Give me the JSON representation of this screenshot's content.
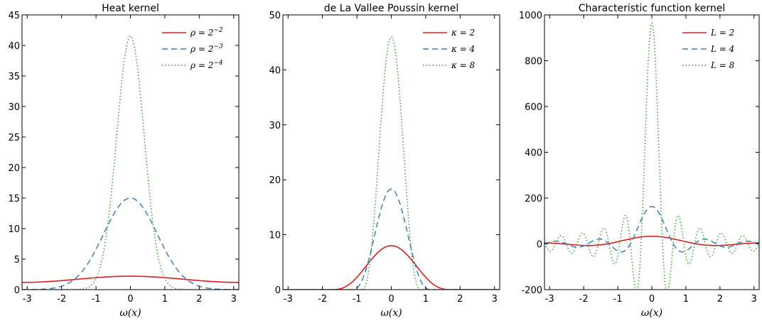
{
  "chart_data": [
    {
      "type": "line",
      "title": "Heat kernel",
      "xlabel": "ω(x)",
      "ylabel": "",
      "xlim": [
        -3.15,
        3.15
      ],
      "ylim": [
        0,
        45
      ],
      "xticks": [
        -3,
        -2,
        -1,
        0,
        1,
        2,
        3
      ],
      "yticks": [
        0,
        5,
        10,
        15,
        20,
        25,
        30,
        35,
        40,
        45
      ],
      "legend": "top-right",
      "series": [
        {
          "name": "ρ = 2^−2",
          "legend_base": "ρ = 2",
          "legend_exp": "−2",
          "color": "#e31a1c",
          "dash": "solid",
          "kernel": "heat",
          "param": 0.25
        },
        {
          "name": "ρ = 2^−3",
          "legend_base": "ρ = 2",
          "legend_exp": "−3",
          "color": "#3b7fb7",
          "dash": "dashed",
          "kernel": "heat",
          "param": 0.125
        },
        {
          "name": "ρ = 2^−4",
          "legend_base": "ρ = 2",
          "legend_exp": "−4",
          "color": "#33a02c",
          "dash": "dotted",
          "kernel": "heat",
          "param": 0.0625
        }
      ]
    },
    {
      "type": "line",
      "title": "de La Vallee Poussin kernel",
      "xlabel": "ω(x)",
      "ylabel": "",
      "xlim": [
        -3.15,
        3.15
      ],
      "ylim": [
        0,
        50
      ],
      "xticks": [
        -3,
        -2,
        -1,
        0,
        1,
        2,
        3
      ],
      "yticks": [
        0,
        10,
        20,
        30,
        40,
        50
      ],
      "legend": "top-right",
      "series": [
        {
          "name": "κ = 2",
          "legend_base": "κ = 2",
          "legend_exp": "",
          "color": "#e31a1c",
          "dash": "solid",
          "kernel": "vallee",
          "param": 2
        },
        {
          "name": "κ = 4",
          "legend_base": "κ = 4",
          "legend_exp": "",
          "color": "#3b7fb7",
          "dash": "dashed",
          "kernel": "vallee",
          "param": 4
        },
        {
          "name": "κ = 8",
          "legend_base": "κ = 8",
          "legend_exp": "",
          "color": "#33a02c",
          "dash": "dotted",
          "kernel": "vallee",
          "param": 8
        }
      ]
    },
    {
      "type": "line",
      "title": "Characteristic function kernel",
      "xlabel": "ω(x)",
      "ylabel": "",
      "xlim": [
        -3.15,
        3.15
      ],
      "ylim": [
        -200,
        1000
      ],
      "xticks": [
        -3,
        -2,
        -1,
        0,
        1,
        2,
        3
      ],
      "yticks": [
        -200,
        0,
        200,
        400,
        600,
        800,
        1000
      ],
      "legend": "top-right",
      "series": [
        {
          "name": "L = 2",
          "legend_base": "L = 2",
          "legend_exp": "",
          "color": "#e31a1c",
          "dash": "solid",
          "kernel": "charfn",
          "param": 2
        },
        {
          "name": "L = 4",
          "legend_base": "L = 4",
          "legend_exp": "",
          "color": "#3b7fb7",
          "dash": "dashed",
          "kernel": "charfn",
          "param": 4
        },
        {
          "name": "L = 8",
          "legend_base": "L = 8",
          "legend_exp": "",
          "color": "#33a02c",
          "dash": "dotted",
          "kernel": "charfn",
          "param": 8
        }
      ]
    }
  ]
}
